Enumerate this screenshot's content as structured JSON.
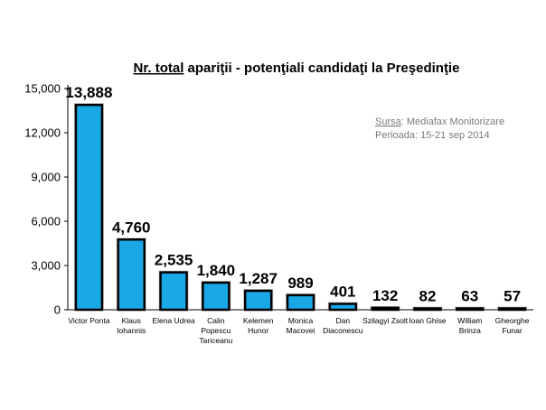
{
  "chart_data": {
    "type": "bar",
    "title_underlined_parts": [
      "Nr. total",
      " apariţii - potenţiali candidaţi la Preşedinţie"
    ],
    "categories": [
      [
        "Victor Ponta"
      ],
      [
        "Klaus",
        "Iohannis"
      ],
      [
        "Elena Udrea"
      ],
      [
        "Calin",
        "Popescu",
        "Tariceanu"
      ],
      [
        "Kelemen",
        "Hunor"
      ],
      [
        "Monica",
        "Macovei"
      ],
      [
        "Dan",
        "Diaconescu"
      ],
      [
        "Szilagyi Zsolt"
      ],
      [
        "Ioan Ghise"
      ],
      [
        "William",
        "Brinza"
      ],
      [
        "Gheorghe",
        "Funar"
      ]
    ],
    "values": [
      13888,
      4760,
      2535,
      1840,
      1287,
      989,
      401,
      132,
      82,
      63,
      57
    ],
    "data_labels": [
      "13,888",
      "4,760",
      "2,535",
      "1,840",
      "1,287",
      "989",
      "401",
      "132",
      "82",
      "63",
      "57"
    ],
    "ylim": [
      0,
      15000
    ],
    "yticks": [
      0,
      3000,
      6000,
      9000,
      12000,
      15000
    ],
    "ytick_labels": [
      "0",
      "3,000",
      "6,000",
      "9,000",
      "12,000",
      "15,000"
    ],
    "grid": false,
    "legend": false,
    "bar_color": "#1aa7e6",
    "bar_outline": "#000000",
    "source_label": "Sursa",
    "source_value": ": Mediafax Monitorizare",
    "period": "Perioada: 15-21 sep 2014"
  }
}
